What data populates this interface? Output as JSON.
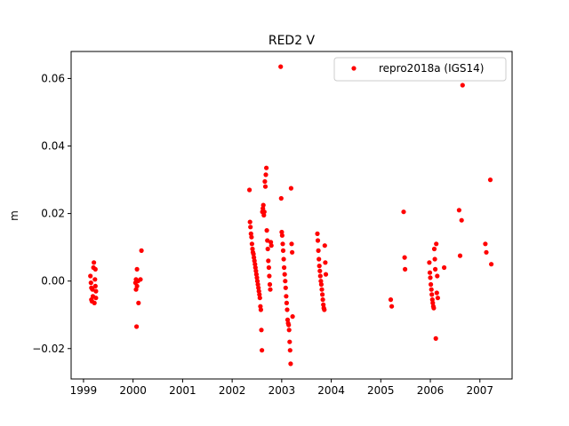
{
  "chart_data": {
    "type": "scatter",
    "title": "RED2 V",
    "xlabel": "",
    "ylabel": "m",
    "xlim": [
      1998.75,
      2007.65
    ],
    "ylim": [
      -0.029,
      0.068
    ],
    "xticks": [
      1999,
      2000,
      2001,
      2002,
      2003,
      2004,
      2005,
      2006,
      2007
    ],
    "xtick_labels": [
      "1999",
      "2000",
      "2001",
      "2002",
      "2003",
      "2004",
      "2005",
      "2006",
      "2007"
    ],
    "yticks": [
      -0.02,
      0.0,
      0.02,
      0.04,
      0.06
    ],
    "ytick_labels": [
      "−0.02",
      "0.00",
      "0.02",
      "0.04",
      "0.06"
    ],
    "grid": false,
    "legend_position": "top-right",
    "series": [
      {
        "name": "repro2018a (IGS14)",
        "color": "#ff0000",
        "marker": "circle",
        "points": [
          [
            1999.14,
            0.0015
          ],
          [
            1999.15,
            -0.0005
          ],
          [
            1999.16,
            -0.002
          ],
          [
            1999.16,
            -0.0055
          ],
          [
            1999.17,
            -0.006
          ],
          [
            1999.18,
            -0.0025
          ],
          [
            1999.19,
            -0.0045
          ],
          [
            1999.2,
            0.004
          ],
          [
            1999.21,
            0.0055
          ],
          [
            1999.22,
            -0.0065
          ],
          [
            1999.23,
            0.0005
          ],
          [
            1999.24,
            0.0035
          ],
          [
            1999.24,
            -0.0015
          ],
          [
            1999.25,
            -0.003
          ],
          [
            1999.25,
            -0.005
          ],
          [
            2000.05,
            -0.0005
          ],
          [
            2000.06,
            0.0005
          ],
          [
            2000.06,
            -0.0025
          ],
          [
            2000.07,
            -0.0135
          ],
          [
            2000.08,
            -0.0015
          ],
          [
            2000.08,
            0.0035
          ],
          [
            2000.1,
            0.0
          ],
          [
            2000.11,
            -0.0065
          ],
          [
            2000.15,
            0.0005
          ],
          [
            2000.17,
            0.009
          ],
          [
            2002.35,
            0.027
          ],
          [
            2002.36,
            0.0175
          ],
          [
            2002.37,
            0.016
          ],
          [
            2002.38,
            0.014
          ],
          [
            2002.39,
            0.013
          ],
          [
            2002.4,
            0.011
          ],
          [
            2002.41,
            0.0095
          ],
          [
            2002.42,
            0.0085
          ],
          [
            2002.43,
            0.008
          ],
          [
            2002.44,
            0.007
          ],
          [
            2002.45,
            0.006
          ],
          [
            2002.46,
            0.005
          ],
          [
            2002.47,
            0.004
          ],
          [
            2002.48,
            0.003
          ],
          [
            2002.49,
            0.002
          ],
          [
            2002.5,
            0.001
          ],
          [
            2002.51,
            0.0
          ],
          [
            2002.52,
            -0.001
          ],
          [
            2002.53,
            -0.002
          ],
          [
            2002.54,
            -0.003
          ],
          [
            2002.55,
            -0.004
          ],
          [
            2002.56,
            -0.005
          ],
          [
            2002.57,
            -0.0075
          ],
          [
            2002.58,
            -0.0085
          ],
          [
            2002.59,
            -0.0145
          ],
          [
            2002.6,
            -0.0205
          ],
          [
            2002.61,
            0.0205
          ],
          [
            2002.62,
            0.0215
          ],
          [
            2002.63,
            0.0225
          ],
          [
            2002.64,
            0.0195
          ],
          [
            2002.65,
            0.0205
          ],
          [
            2002.66,
            0.0295
          ],
          [
            2002.67,
            0.028
          ],
          [
            2002.68,
            0.0315
          ],
          [
            2002.69,
            0.0335
          ],
          [
            2002.7,
            0.015
          ],
          [
            2002.71,
            0.012
          ],
          [
            2002.72,
            0.0095
          ],
          [
            2002.73,
            0.006
          ],
          [
            2002.74,
            0.004
          ],
          [
            2002.75,
            0.0015
          ],
          [
            2002.76,
            -0.001
          ],
          [
            2002.77,
            -0.0025
          ],
          [
            2002.78,
            0.0115
          ],
          [
            2002.79,
            0.0105
          ],
          [
            2002.98,
            0.0635
          ],
          [
            2002.99,
            0.0245
          ],
          [
            2003.0,
            0.0145
          ],
          [
            2003.01,
            0.0135
          ],
          [
            2003.02,
            0.011
          ],
          [
            2003.03,
            0.009
          ],
          [
            2003.04,
            0.0065
          ],
          [
            2003.05,
            0.004
          ],
          [
            2003.06,
            0.002
          ],
          [
            2003.07,
            0.0
          ],
          [
            2003.08,
            -0.002
          ],
          [
            2003.09,
            -0.0045
          ],
          [
            2003.1,
            -0.0065
          ],
          [
            2003.11,
            -0.0085
          ],
          [
            2003.12,
            -0.0115
          ],
          [
            2003.13,
            -0.0125
          ],
          [
            2003.14,
            -0.013
          ],
          [
            2003.15,
            -0.0145
          ],
          [
            2003.16,
            -0.018
          ],
          [
            2003.17,
            -0.0205
          ],
          [
            2003.18,
            -0.0245
          ],
          [
            2003.19,
            0.0275
          ],
          [
            2003.2,
            0.011
          ],
          [
            2003.21,
            0.0085
          ],
          [
            2003.22,
            -0.0105
          ],
          [
            2003.72,
            0.014
          ],
          [
            2003.73,
            0.012
          ],
          [
            2003.74,
            0.009
          ],
          [
            2003.75,
            0.0065
          ],
          [
            2003.76,
            0.0045
          ],
          [
            2003.77,
            0.003
          ],
          [
            2003.78,
            0.0015
          ],
          [
            2003.79,
            0.0
          ],
          [
            2003.8,
            -0.001
          ],
          [
            2003.81,
            -0.0025
          ],
          [
            2003.82,
            -0.004
          ],
          [
            2003.83,
            -0.0055
          ],
          [
            2003.84,
            -0.007
          ],
          [
            2003.85,
            -0.008
          ],
          [
            2003.86,
            -0.0085
          ],
          [
            2003.87,
            0.0105
          ],
          [
            2003.88,
            0.0055
          ],
          [
            2003.89,
            0.002
          ],
          [
            2005.2,
            -0.0055
          ],
          [
            2005.22,
            -0.0075
          ],
          [
            2005.46,
            0.0205
          ],
          [
            2005.48,
            0.007
          ],
          [
            2005.49,
            0.0035
          ],
          [
            2005.98,
            0.0055
          ],
          [
            2005.99,
            0.0025
          ],
          [
            2006.0,
            0.001
          ],
          [
            2006.01,
            -0.001
          ],
          [
            2006.02,
            -0.0025
          ],
          [
            2006.03,
            -0.004
          ],
          [
            2006.04,
            -0.0055
          ],
          [
            2006.05,
            -0.0065
          ],
          [
            2006.06,
            -0.0075
          ],
          [
            2006.07,
            -0.008
          ],
          [
            2006.08,
            0.0095
          ],
          [
            2006.09,
            0.0065
          ],
          [
            2006.1,
            0.0035
          ],
          [
            2006.11,
            -0.017
          ],
          [
            2006.12,
            0.011
          ],
          [
            2006.13,
            -0.0035
          ],
          [
            2006.14,
            0.0015
          ],
          [
            2006.15,
            -0.005
          ],
          [
            2006.28,
            0.004
          ],
          [
            2006.58,
            0.021
          ],
          [
            2006.6,
            0.0075
          ],
          [
            2006.63,
            0.018
          ],
          [
            2006.65,
            0.058
          ],
          [
            2007.11,
            0.011
          ],
          [
            2007.13,
            0.0085
          ],
          [
            2007.21,
            0.03
          ],
          [
            2007.23,
            0.005
          ]
        ]
      }
    ]
  }
}
